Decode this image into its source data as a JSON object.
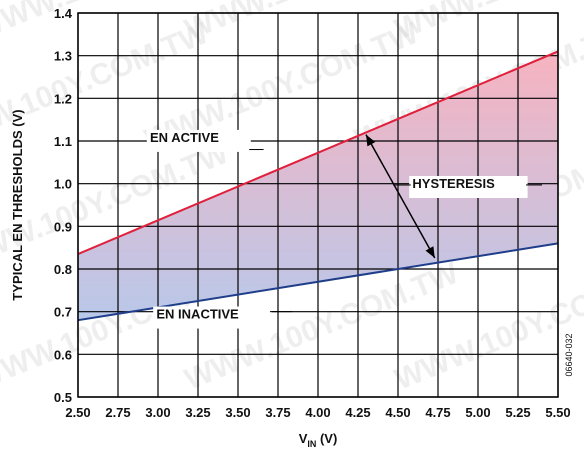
{
  "chart_data": {
    "type": "area",
    "xlabel_main": "V",
    "xlabel_sub": "IN",
    "xlabel_unit": " (V)",
    "ylabel": "TYPICAL EN THRESHOLDS (V)",
    "xlim": [
      2.5,
      5.5
    ],
    "ylim": [
      0.5,
      1.4
    ],
    "x_ticks": [
      "2.50",
      "2.75",
      "3.00",
      "3.25",
      "3.50",
      "3.75",
      "4.00",
      "4.25",
      "4.50",
      "4.75",
      "5.00",
      "5.25",
      "5.50"
    ],
    "y_ticks": [
      "0.5",
      "0.6",
      "0.7",
      "0.8",
      "0.9",
      "1.0",
      "1.1",
      "1.2",
      "1.3",
      "1.4"
    ],
    "grid": true,
    "series": [
      {
        "name": "EN ACTIVE",
        "x": [
          2.5,
          5.5
        ],
        "y": [
          0.835,
          1.31
        ],
        "color": "#e0203c"
      },
      {
        "name": "EN INACTIVE",
        "x": [
          2.5,
          5.5
        ],
        "y": [
          0.68,
          0.86
        ],
        "color": "#1f3e8a"
      }
    ],
    "fill_colors": {
      "top": "#f7b3c0",
      "bottom": "#b9c8ea"
    },
    "annotations": {
      "active_label": "EN ACTIVE",
      "inactive_label": "EN INACTIVE",
      "hysteresis_label": "HYSTERESIS"
    }
  },
  "figure_id": "06640-032",
  "watermark": "WWW.100Y.COM.TW"
}
